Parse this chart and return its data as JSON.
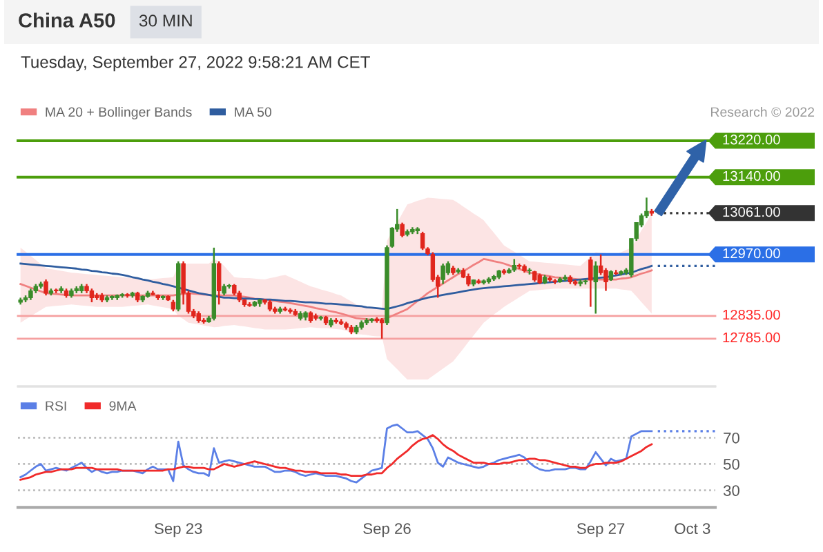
{
  "chart_data": [
    {
      "type": "candlestick",
      "title": "China A50",
      "subtitle": "Tuesday, September 27, 2022 9:58:21 AM CET",
      "annotations": [
        "30 MIN",
        "Research © 2022"
      ],
      "categories": [
        null,
        null,
        null,
        null,
        null,
        null,
        null,
        null,
        null,
        null,
        null,
        null,
        null,
        null,
        null,
        null,
        null,
        null,
        null,
        null,
        null,
        null,
        null,
        null,
        null,
        null,
        null,
        null,
        null,
        null,
        null,
        "Sep 23",
        null,
        null,
        null,
        null,
        null,
        null,
        null,
        null,
        null,
        null,
        null,
        null,
        null,
        null,
        null,
        null,
        null,
        null,
        null,
        null,
        null,
        null,
        null,
        null,
        null,
        null,
        null,
        null,
        null,
        null,
        null,
        null,
        null,
        null,
        null,
        null,
        null,
        null,
        null,
        null,
        "Sep 26",
        null,
        null,
        null,
        null,
        null,
        null,
        null,
        null,
        null,
        null,
        null,
        null,
        null,
        null,
        null,
        null,
        null,
        null,
        null,
        null,
        null,
        null,
        null,
        null,
        null,
        null,
        null,
        null,
        null,
        null,
        null,
        null,
        null,
        null,
        null,
        null,
        null,
        null,
        null,
        null,
        null,
        "Sep 27",
        null,
        null,
        null,
        null,
        null,
        null,
        null,
        null,
        null,
        null,
        null,
        null,
        null,
        null,
        null,
        null,
        null,
        "Oct 3",
        null,
        null,
        null,
        null
      ],
      "ohlc": [
        [
          12865,
          12875,
          12860,
          12870
        ],
        [
          12870,
          12880,
          12865,
          12875
        ],
        [
          12875,
          12895,
          12870,
          12890
        ],
        [
          12890,
          12905,
          12885,
          12900
        ],
        [
          12900,
          12910,
          12895,
          12905
        ],
        [
          12910,
          12915,
          12880,
          12885
        ],
        [
          12885,
          12895,
          12880,
          12890
        ],
        [
          12892,
          12895,
          12885,
          12890
        ],
        [
          12890,
          12900,
          12885,
          12895
        ],
        [
          12890,
          12895,
          12875,
          12880
        ],
        [
          12880,
          12895,
          12875,
          12890
        ],
        [
          12890,
          12900,
          12885,
          12895
        ],
        [
          12890,
          12905,
          12885,
          12900
        ],
        [
          12900,
          12905,
          12885,
          12890
        ],
        [
          12890,
          12895,
          12865,
          12875
        ],
        [
          12880,
          12885,
          12870,
          12875
        ],
        [
          12880,
          12885,
          12865,
          12870
        ],
        [
          12870,
          12880,
          12865,
          12875
        ],
        [
          12875,
          12880,
          12870,
          12878
        ],
        [
          12875,
          12882,
          12870,
          12880
        ],
        [
          12880,
          12885,
          12875,
          12882
        ],
        [
          12882,
          12885,
          12875,
          12880
        ],
        [
          12880,
          12888,
          12875,
          12885
        ],
        [
          12885,
          12888,
          12865,
          12870
        ],
        [
          12870,
          12880,
          12865,
          12878
        ],
        [
          12878,
          12890,
          12875,
          12885
        ],
        [
          12885,
          12890,
          12880,
          12882
        ],
        [
          12880,
          12882,
          12870,
          12875
        ],
        [
          12875,
          12880,
          12870,
          12878
        ],
        [
          12878,
          12880,
          12868,
          12870
        ],
        [
          12865,
          12870,
          12845,
          12850
        ],
        [
          12850,
          12955,
          12845,
          12950
        ],
        [
          12950,
          12955,
          12860,
          12885
        ],
        [
          12885,
          12890,
          12840,
          12845
        ],
        [
          12845,
          12850,
          12830,
          12835
        ],
        [
          12840,
          12845,
          12820,
          12825
        ],
        [
          12825,
          12830,
          12818,
          12822
        ],
        [
          12822,
          12835,
          12820,
          12830
        ],
        [
          12830,
          12985,
          12825,
          12950
        ],
        [
          12950,
          12955,
          12860,
          12890
        ],
        [
          12885,
          12905,
          12880,
          12900
        ],
        [
          12900,
          12905,
          12895,
          12902
        ],
        [
          12902,
          12905,
          12880,
          12885
        ],
        [
          12885,
          12890,
          12865,
          12870
        ],
        [
          12870,
          12872,
          12855,
          12860
        ],
        [
          12860,
          12865,
          12855,
          12858
        ],
        [
          12858,
          12868,
          12855,
          12865
        ],
        [
          12862,
          12872,
          12855,
          12870
        ],
        [
          12870,
          12872,
          12860,
          12865
        ],
        [
          12865,
          12870,
          12845,
          12850
        ],
        [
          12850,
          12855,
          12840,
          12845
        ],
        [
          12845,
          12855,
          12840,
          12850
        ],
        [
          12850,
          12855,
          12845,
          12848
        ],
        [
          12848,
          12852,
          12840,
          12845
        ],
        [
          12845,
          12850,
          12835,
          12838
        ],
        [
          12830,
          12845,
          12825,
          12840
        ],
        [
          12832,
          12845,
          12825,
          12842
        ],
        [
          12842,
          12845,
          12820,
          12825
        ],
        [
          12835,
          12840,
          12825,
          12830
        ],
        [
          12830,
          12835,
          12825,
          12832
        ],
        [
          12832,
          12835,
          12815,
          12820
        ],
        [
          12815,
          12830,
          12810,
          12825
        ],
        [
          12825,
          12830,
          12818,
          12822
        ],
        [
          12822,
          12828,
          12815,
          12818
        ],
        [
          12818,
          12822,
          12805,
          12810
        ],
        [
          12810,
          12815,
          12795,
          12800
        ],
        [
          12800,
          12815,
          12795,
          12810
        ],
        [
          12810,
          12825,
          12805,
          12820
        ],
        [
          12820,
          12830,
          12815,
          12825
        ],
        [
          12825,
          12830,
          12820,
          12828
        ],
        [
          12828,
          12832,
          12820,
          12825
        ],
        [
          12826,
          12830,
          12785,
          12820
        ],
        [
          12820,
          12990,
          12815,
          12985
        ],
        [
          12988,
          13030,
          12985,
          13028
        ],
        [
          13026,
          13070,
          13020,
          13036
        ],
        [
          13036,
          13040,
          13008,
          13012
        ],
        [
          13014,
          13025,
          13010,
          13020
        ],
        [
          13020,
          13030,
          13015,
          13025
        ],
        [
          13022,
          13030,
          13015,
          13026
        ],
        [
          13016,
          13020,
          12980,
          12984
        ],
        [
          12982,
          12986,
          12968,
          12972
        ],
        [
          12970,
          12975,
          12910,
          12915
        ],
        [
          12920,
          12925,
          12875,
          12900
        ],
        [
          12915,
          12950,
          12905,
          12945
        ],
        [
          12930,
          12955,
          12925,
          12950
        ],
        [
          12940,
          12945,
          12925,
          12930
        ],
        [
          12932,
          12940,
          12928,
          12936
        ],
        [
          12935,
          12940,
          12918,
          12920
        ],
        [
          12922,
          12928,
          12900,
          12905
        ],
        [
          12905,
          12915,
          12900,
          12914
        ],
        [
          12912,
          12916,
          12905,
          12908
        ],
        [
          12908,
          12915,
          12904,
          12912
        ],
        [
          12910,
          12920,
          12906,
          12916
        ],
        [
          12916,
          12925,
          12912,
          12922
        ],
        [
          12920,
          12936,
          12916,
          12934
        ],
        [
          12934,
          12938,
          12926,
          12930
        ],
        [
          12930,
          12940,
          12928,
          12936
        ],
        [
          12936,
          12960,
          12932,
          12946
        ],
        [
          12946,
          12950,
          12938,
          12944
        ],
        [
          12944,
          12948,
          12930,
          12934
        ],
        [
          12934,
          12940,
          12926,
          12936
        ],
        [
          12932,
          12934,
          12910,
          12914
        ],
        [
          12924,
          12928,
          12905,
          12908
        ],
        [
          12908,
          12925,
          12905,
          12920
        ],
        [
          12918,
          12922,
          12910,
          12914
        ],
        [
          12912,
          12916,
          12905,
          12910
        ],
        [
          12910,
          12920,
          12908,
          12916
        ],
        [
          12916,
          12925,
          12912,
          12920
        ],
        [
          12920,
          12924,
          12905,
          12910
        ],
        [
          12910,
          12914,
          12902,
          12906
        ],
        [
          12906,
          12915,
          12900,
          12910
        ],
        [
          12910,
          12915,
          12904,
          12912
        ],
        [
          12958,
          12965,
          12855,
          12914
        ],
        [
          12910,
          12955,
          12840,
          12945
        ],
        [
          12945,
          12970,
          12925,
          12930
        ],
        [
          12935,
          12940,
          12890,
          12910
        ],
        [
          12915,
          12935,
          12912,
          12932
        ],
        [
          12930,
          12936,
          12925,
          12928
        ],
        [
          12928,
          12935,
          12924,
          12932
        ],
        [
          12930,
          12940,
          12925,
          12936
        ],
        [
          12925,
          13005,
          12920,
          13005
        ],
        [
          13005,
          13040,
          13000,
          13040
        ],
        [
          13035,
          13060,
          13030,
          13055
        ],
        [
          13055,
          13095,
          13050,
          13065
        ],
        [
          13065,
          13070,
          13055,
          13061
        ],
        null,
        null,
        null,
        null,
        null,
        null,
        null,
        null,
        null,
        null,
        null,
        null
      ],
      "colors": [
        "#3a8c2a",
        "#3a8c2a",
        "#3a8c2a",
        "#3a8c2a",
        "#3a8c2a",
        "#e0261d",
        "#3a8c2a",
        "#e0261d",
        "#3a8c2a",
        "#e0261d",
        "#3a8c2a",
        "#3a8c2a",
        "#3a8c2a",
        "#e0261d",
        "#e0261d",
        "#e0261d",
        "#e0261d",
        "#3a8c2a",
        "#3a8c2a",
        "#3a8c2a",
        "#3a8c2a",
        "#e0261d",
        "#3a8c2a",
        "#e0261d",
        "#3a8c2a",
        "#3a8c2a",
        "#e0261d",
        "#e0261d",
        "#3a8c2a",
        "#e0261d",
        "#e0261d",
        "#3a8c2a",
        "#e0261d",
        "#e0261d",
        "#e0261d",
        "#e0261d",
        "#e0261d",
        "#3a8c2a",
        "#3a8c2a",
        "#e0261d",
        "#3a8c2a",
        "#3a8c2a",
        "#e0261d",
        "#e0261d",
        "#e0261d",
        "#e0261d",
        "#3a8c2a",
        "#3a8c2a",
        "#e0261d",
        "#e0261d",
        "#e0261d",
        "#3a8c2a",
        "#e0261d",
        "#e0261d",
        "#e0261d",
        "#3a8c2a",
        "#3a8c2a",
        "#e0261d",
        "#e0261d",
        "#3a8c2a",
        "#e0261d",
        "#3a8c2a",
        "#e0261d",
        "#e0261d",
        "#e0261d",
        "#e0261d",
        "#3a8c2a",
        "#3a8c2a",
        "#3a8c2a",
        "#3a8c2a",
        "#e0261d",
        "#e0261d",
        "#3a8c2a",
        "#3a8c2a",
        "#3a8c2a",
        "#e0261d",
        "#3a8c2a",
        "#3a8c2a",
        "#3a8c2a",
        "#e0261d",
        "#e0261d",
        "#e0261d",
        "#e0261d",
        "#3a8c2a",
        "#3a8c2a",
        "#e0261d",
        "#3a8c2a",
        "#e0261d",
        "#e0261d",
        "#3a8c2a",
        "#e0261d",
        "#3a8c2a",
        "#3a8c2a",
        "#3a8c2a",
        "#3a8c2a",
        "#e0261d",
        "#3a8c2a",
        "#3a8c2a",
        "#e0261d",
        "#e0261d",
        "#3a8c2a",
        "#e0261d",
        "#e0261d",
        "#3a8c2a",
        "#e0261d",
        "#e0261d",
        "#3a8c2a",
        "#3a8c2a",
        "#e0261d",
        "#e0261d",
        "#3a8c2a",
        "#3a8c2a",
        "#e0261d",
        "#3a8c2a",
        "#e0261d",
        "#e0261d",
        "#3a8c2a",
        "#e0261d",
        "#3a8c2a",
        "#3a8c2a",
        "#3a8c2a",
        "#3a8c2a",
        "#3a8c2a",
        "#3a8c2a",
        "#e0261d",
        null,
        null,
        null,
        null,
        null,
        null,
        null,
        null,
        null,
        null,
        null,
        null
      ],
      "series": [
        {
          "name": "MA 20 + Bollinger Bands",
          "type": "line",
          "color": "#f08080",
          "values": [
            12905,
            12901,
            12897,
            12893,
            12889,
            12885,
            12884,
            12883,
            12882,
            12881,
            12880,
            12880,
            12880,
            12880,
            12880,
            12880,
            12880,
            12880,
            12880,
            12880,
            12880,
            12880,
            12880,
            12880,
            12880,
            12880,
            12880,
            12880,
            12880,
            12880,
            12880,
            12882,
            12883,
            12885,
            12884,
            12883,
            12882,
            12881,
            12880,
            12880,
            12880,
            12880,
            12880,
            12878,
            12877,
            12875,
            12873,
            12872,
            12870,
            12869,
            12868,
            12866,
            12865,
            12863,
            12861,
            12859,
            12857,
            12855,
            12852,
            12850,
            12848,
            12845,
            12843,
            12840,
            12837,
            12833,
            12830,
            12829,
            12828,
            12826,
            12825,
            12828,
            12830,
            12835,
            12840,
            12845,
            12850,
            12859,
            12868,
            12876,
            12885,
            12892,
            12899,
            12906,
            12913,
            12920,
            12927,
            12933,
            12940,
            12947,
            12953,
            12960,
            12958,
            12955,
            12953,
            12950,
            12946,
            12942,
            12938,
            12934,
            12930,
            12928,
            12926,
            12924,
            12922,
            12920,
            12919,
            12918,
            12917,
            12916,
            12915,
            12915,
            12915,
            12915,
            12915,
            12915,
            12915,
            12915,
            12917,
            12918,
            12920,
            12924,
            12928,
            12931,
            12935,
            null,
            null,
            null,
            null,
            null,
            null,
            null,
            null,
            null,
            null,
            null,
            null
          ],
          "lower": [
            12820,
            12827,
            12834,
            12841,
            12848,
            12855,
            12856,
            12857,
            12858,
            12859,
            12860,
            12859,
            12858,
            12857,
            12856,
            12855,
            12855,
            12855,
            12855,
            12855,
            12855,
            12856,
            12857,
            12858,
            12859,
            12860,
            12858,
            12856,
            12854,
            12852,
            12850,
            12835,
            12828,
            12820,
            12818,
            12816,
            12814,
            12812,
            12810,
            12811,
            12813,
            12814,
            12815,
            12813,
            12812,
            12810,
            12808,
            12807,
            12805,
            12805,
            12805,
            12805,
            12805,
            12806,
            12807,
            12808,
            12809,
            12810,
            12809,
            12808,
            12808,
            12807,
            12806,
            12805,
            12802,
            12798,
            12795,
            12794,
            12793,
            12791,
            12790,
            12790,
            12740,
            12729,
            12718,
            12706,
            12695,
            12695,
            12695,
            12695,
            12695,
            12703,
            12711,
            12719,
            12727,
            12735,
            12749,
            12763,
            12778,
            12792,
            12806,
            12820,
            12829,
            12838,
            12846,
            12855,
            12862,
            12869,
            12876,
            12883,
            12890,
            12891,
            12892,
            12893,
            12894,
            12895,
            12895,
            12895,
            12895,
            12895,
            12895,
            12895,
            12895,
            12895,
            12895,
            12895,
            12895,
            12895,
            12893,
            12892,
            12890,
            12878,
            12865,
            12853,
            12840,
            null,
            null,
            null,
            null,
            null,
            null,
            null,
            null,
            null,
            null,
            null,
            null
          ],
          "upper": [
            12985,
            12976,
            12967,
            12958,
            12949,
            12940,
            12938,
            12936,
            12934,
            12932,
            12930,
            12929,
            12928,
            12927,
            12926,
            12925,
            12924,
            12923,
            12922,
            12921,
            12920,
            12919,
            12918,
            12917,
            12916,
            12915,
            12916,
            12917,
            12918,
            12919,
            12920,
            12945,
            12948,
            12950,
            12950,
            12950,
            12950,
            12950,
            12960,
            12955,
            12945,
            12932,
            12920,
            12919,
            12918,
            12918,
            12917,
            12916,
            12915,
            12918,
            12920,
            12923,
            12925,
            12920,
            12915,
            12910,
            12905,
            12900,
            12897,
            12893,
            12890,
            12887,
            12883,
            12880,
            12873,
            12867,
            12860,
            12858,
            12855,
            12853,
            12850,
            12850,
            13000,
            13020,
            13040,
            13060,
            13080,
            13084,
            13088,
            13091,
            13095,
            13094,
            13093,
            13092,
            13091,
            13090,
            13083,
            13075,
            13068,
            13060,
            13053,
            13045,
            13031,
            13018,
            13004,
            12990,
            12983,
            12976,
            12969,
            12962,
            12955,
            12954,
            12953,
            12952,
            12951,
            12950,
            12949,
            12948,
            12947,
            12946,
            12945,
            12955,
            12965,
            12975,
            12974,
            12973,
            12971,
            12970,
            12975,
            12980,
            12985,
            13004,
            13023,
            13041,
            13060,
            null,
            null,
            null,
            null,
            null,
            null,
            null,
            null,
            null,
            null,
            null,
            null
          ]
        },
        {
          "name": "MA 50",
          "type": "line",
          "color": "#2f5d9f",
          "values": [
            12950,
            12949,
            12948,
            12947,
            12946,
            12945,
            12944,
            12943,
            12942,
            12941,
            12940,
            12939,
            12937,
            12936,
            12934,
            12933,
            12931,
            12930,
            12928,
            12927,
            12925,
            12923,
            12920,
            12918,
            12915,
            12913,
            12910,
            12908,
            12905,
            12903,
            12900,
            12897,
            12894,
            12891,
            12888,
            12885,
            12883,
            12881,
            12879,
            12877,
            12875,
            12875,
            12874,
            12874,
            12873,
            12873,
            12872,
            12872,
            12871,
            12871,
            12870,
            12869,
            12868,
            12868,
            12867,
            12866,
            12865,
            12865,
            12864,
            12863,
            12862,
            12862,
            12861,
            12860,
            12859,
            12858,
            12857,
            12856,
            12854,
            12853,
            12852,
            12851,
            12850,
            12853,
            12856,
            12859,
            12863,
            12866,
            12869,
            12872,
            12875,
            12877,
            12879,
            12881,
            12883,
            12885,
            12887,
            12889,
            12891,
            12893,
            12895,
            12896,
            12897,
            12898,
            12899,
            12900,
            12901,
            12902,
            12903,
            12904,
            12905,
            12906,
            12907,
            12908,
            12909,
            12910,
            12911,
            12912,
            12913,
            12914,
            12915,
            12916,
            12917,
            12918,
            12919,
            12920,
            12922,
            12924,
            12926,
            12928,
            12930,
            12934,
            12938,
            12941,
            12945,
            null,
            null,
            null,
            null,
            null,
            null,
            null,
            null,
            null,
            null,
            null,
            null
          ]
        }
      ],
      "ylim": [
        12680,
        13220
      ],
      "tick_labels": false,
      "legend": "top left",
      "ref_lines": [
        {
          "axis": "y",
          "value": 13220,
          "label": "13220.00",
          "color": "#4c9e0c"
        },
        {
          "axis": "y",
          "value": 13140,
          "label": "13140.00",
          "color": "#4c9e0c"
        },
        {
          "axis": "y",
          "value": 13061,
          "label": "13061.00",
          "color": "#333333",
          "line_style": "dotted"
        },
        {
          "axis": "y",
          "value": 12970,
          "label": "12970.00",
          "color": "#2b6fe6"
        },
        {
          "axis": "y",
          "value": 12945,
          "color": "#2f5d9f",
          "line_style": "dotted"
        },
        {
          "axis": "y",
          "value": 12835,
          "label": "12835.00",
          "color": "#f5a0a0"
        },
        {
          "axis": "y",
          "value": 12785,
          "label": "12785.00",
          "color": "#f5a0a0"
        }
      ]
    },
    {
      "type": "line",
      "categories": [
        null,
        null,
        null,
        null,
        null,
        null,
        null,
        null,
        null,
        null,
        null,
        null,
        null,
        null,
        null,
        null,
        null,
        null,
        null,
        null,
        null,
        null,
        null,
        null,
        null,
        null,
        null,
        null,
        null,
        null,
        null,
        "Sep 23",
        null,
        null,
        null,
        null,
        null,
        null,
        null,
        null,
        null,
        null,
        null,
        null,
        null,
        null,
        null,
        null,
        null,
        null,
        null,
        null,
        null,
        null,
        null,
        null,
        null,
        null,
        null,
        null,
        null,
        null,
        null,
        null,
        null,
        null,
        null,
        null,
        null,
        null,
        null,
        null,
        "Sep 26",
        null,
        null,
        null,
        null,
        null,
        null,
        null,
        null,
        null,
        null,
        null,
        null,
        null,
        null,
        null,
        null,
        null,
        null,
        null,
        null,
        null,
        null,
        null,
        null,
        null,
        null,
        null,
        null,
        null,
        null,
        null,
        null,
        null,
        null,
        null,
        null,
        null,
        null,
        null,
        null,
        null,
        "Sep 27",
        null,
        null,
        null,
        null,
        null,
        null,
        null,
        null,
        null,
        null,
        null,
        null,
        null,
        null,
        null,
        null,
        null,
        "Oct 3",
        null,
        null,
        null,
        null
      ],
      "series": [
        {
          "name": "RSI",
          "color": "#5b7fe6",
          "values": [
            40,
            42,
            45,
            48,
            50,
            45,
            46,
            47,
            46,
            45,
            47,
            49,
            51,
            47,
            44,
            46,
            44,
            43,
            44,
            44,
            45,
            45,
            45,
            44,
            43,
            46,
            48,
            46,
            46,
            46,
            37,
            67,
            49,
            46,
            44,
            43,
            43,
            41,
            62,
            51,
            52,
            53,
            52,
            51,
            50,
            49,
            48,
            48,
            48,
            46,
            44,
            44,
            45,
            45,
            44,
            42,
            41,
            42,
            43,
            42,
            41,
            41,
            41,
            40,
            39,
            37,
            36,
            39,
            42,
            45,
            46,
            47,
            77,
            79,
            80,
            77,
            74,
            74,
            75,
            72,
            69,
            62,
            51,
            48,
            55,
            53,
            51,
            50,
            49,
            48,
            47,
            48,
            50,
            51,
            53,
            54,
            55,
            56,
            57,
            55,
            51,
            48,
            46,
            45,
            45,
            46,
            46,
            46,
            47,
            47,
            46,
            46,
            52,
            59,
            54,
            49,
            54,
            52,
            53,
            54,
            71,
            73,
            75,
            75,
            75,
            null,
            null,
            null,
            null,
            null,
            null,
            null,
            null,
            null,
            null,
            null,
            null
          ]
        },
        {
          "name": "9MA",
          "color": "#f02a2a",
          "values": [
            38,
            39,
            40,
            42,
            43,
            44,
            44,
            45,
            46,
            46,
            46,
            47,
            47,
            47,
            47,
            46,
            46,
            46,
            46,
            46,
            45,
            45,
            45,
            45,
            45,
            45,
            45,
            45,
            45,
            46,
            46,
            47,
            48,
            48,
            47,
            47,
            47,
            46,
            46,
            48,
            50,
            49,
            48,
            49,
            50,
            51,
            52,
            51,
            50,
            49,
            48,
            47,
            47,
            46,
            45,
            45,
            44,
            44,
            44,
            43,
            43,
            43,
            43,
            42,
            42,
            41,
            41,
            41,
            42,
            42,
            43,
            43,
            47,
            50,
            54,
            57,
            60,
            64,
            67,
            69,
            70,
            72,
            69,
            65,
            62,
            60,
            57,
            55,
            53,
            51,
            51,
            51,
            50,
            50,
            50,
            51,
            51,
            52,
            53,
            53,
            54,
            54,
            53,
            53,
            52,
            51,
            50,
            49,
            48,
            48,
            47,
            47,
            49,
            50,
            50,
            51,
            51,
            51,
            52,
            54,
            56,
            58,
            60,
            63,
            65,
            null,
            null,
            null,
            null,
            null,
            null,
            null,
            null,
            null,
            null,
            null,
            null
          ]
        }
      ],
      "ylim": [
        17,
        109
      ],
      "yticks": [
        30,
        50,
        70
      ],
      "grid": "y",
      "legend": "top left",
      "ref_lines": [
        {
          "axis": "y",
          "value": 75,
          "color": "#5b7fe6",
          "line_style": "dotted"
        }
      ]
    }
  ]
}
